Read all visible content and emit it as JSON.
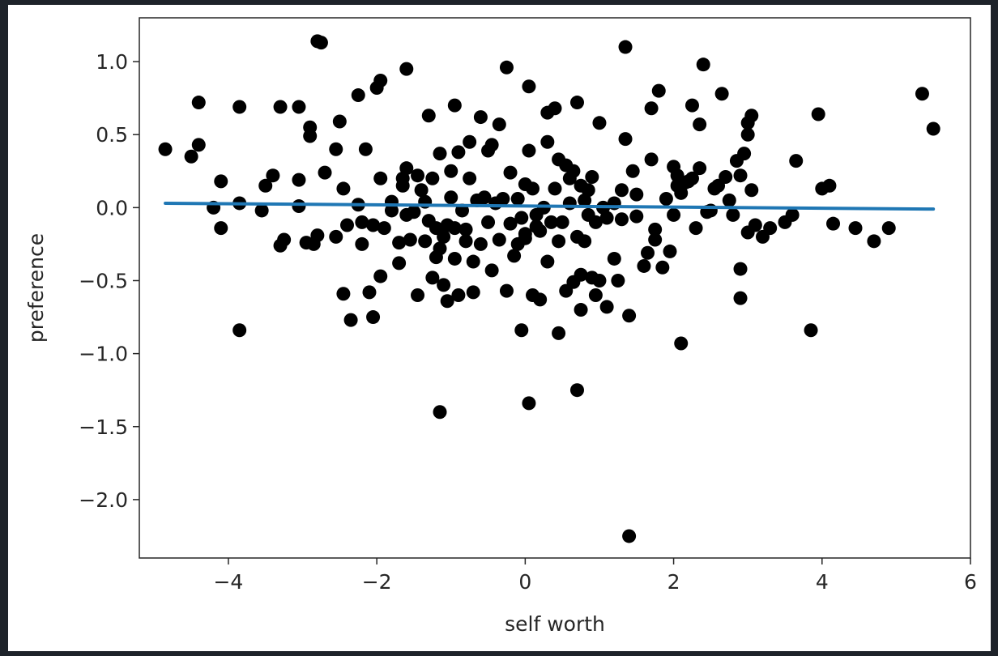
{
  "chart_data": {
    "type": "scatter",
    "xlabel": "self worth",
    "ylabel": "preference",
    "xlim": [
      -5.2,
      6.0
    ],
    "ylim": [
      -2.4,
      1.3
    ],
    "xticks": [
      -4,
      -2,
      0,
      2,
      4,
      6
    ],
    "xtick_labels": [
      "−4",
      "−2",
      "0",
      "2",
      "4",
      "6"
    ],
    "yticks": [
      1.0,
      0.5,
      0.0,
      -0.5,
      -1.0,
      -1.5,
      -2.0
    ],
    "ytick_labels": [
      "1.0",
      "0.5",
      "0.0",
      "−0.5",
      "−1.0",
      "−1.5",
      "−2.0"
    ],
    "grid": false,
    "point_color": "#000000",
    "line_color": "#1f77b4",
    "points": [
      [
        -4.85,
        0.4
      ],
      [
        -4.5,
        0.35
      ],
      [
        -4.4,
        0.72
      ],
      [
        -4.4,
        0.43
      ],
      [
        -4.2,
        0.0
      ],
      [
        -4.1,
        0.18
      ],
      [
        -4.1,
        -0.14
      ],
      [
        -3.85,
        0.69
      ],
      [
        -3.85,
        0.03
      ],
      [
        -3.85,
        -0.84
      ],
      [
        -3.55,
        -0.02
      ],
      [
        -3.5,
        0.15
      ],
      [
        -3.4,
        0.22
      ],
      [
        -3.3,
        0.69
      ],
      [
        -3.3,
        -0.26
      ],
      [
        -3.25,
        -0.22
      ],
      [
        -3.05,
        0.69
      ],
      [
        -3.05,
        0.19
      ],
      [
        -3.05,
        0.01
      ],
      [
        -2.95,
        -0.24
      ],
      [
        -2.9,
        0.55
      ],
      [
        -2.9,
        0.49
      ],
      [
        -2.85,
        -0.25
      ],
      [
        -2.8,
        -0.19
      ],
      [
        -2.8,
        1.14
      ],
      [
        -2.75,
        1.13
      ],
      [
        -2.7,
        0.24
      ],
      [
        -2.55,
        0.4
      ],
      [
        -2.55,
        -0.2
      ],
      [
        -2.5,
        0.59
      ],
      [
        -2.45,
        0.13
      ],
      [
        -2.45,
        -0.59
      ],
      [
        -2.4,
        -0.12
      ],
      [
        -2.35,
        -0.77
      ],
      [
        -2.25,
        0.77
      ],
      [
        -2.25,
        0.02
      ],
      [
        -2.2,
        -0.1
      ],
      [
        -2.2,
        -0.25
      ],
      [
        -2.15,
        0.4
      ],
      [
        -2.1,
        -0.58
      ],
      [
        -2.05,
        -0.75
      ],
      [
        -2.05,
        -0.12
      ],
      [
        -2.0,
        0.82
      ],
      [
        -1.95,
        0.87
      ],
      [
        -1.95,
        0.2
      ],
      [
        -1.95,
        -0.47
      ],
      [
        -1.9,
        -0.14
      ],
      [
        -1.8,
        0.04
      ],
      [
        -1.8,
        -0.02
      ],
      [
        -1.7,
        -0.24
      ],
      [
        -1.7,
        -0.38
      ],
      [
        -1.65,
        0.15
      ],
      [
        -1.65,
        0.2
      ],
      [
        -1.6,
        0.95
      ],
      [
        -1.6,
        0.27
      ],
      [
        -1.6,
        -0.05
      ],
      [
        -1.55,
        -0.22
      ],
      [
        -1.5,
        -0.03
      ],
      [
        -1.45,
        0.22
      ],
      [
        -1.45,
        -0.6
      ],
      [
        -1.4,
        0.12
      ],
      [
        -1.35,
        -0.23
      ],
      [
        -1.35,
        0.04
      ],
      [
        -1.3,
        0.63
      ],
      [
        -1.3,
        -0.09
      ],
      [
        -1.25,
        -0.48
      ],
      [
        -1.25,
        0.2
      ],
      [
        -1.2,
        -0.14
      ],
      [
        -1.2,
        -0.34
      ],
      [
        -1.15,
        0.37
      ],
      [
        -1.15,
        -0.28
      ],
      [
        -1.15,
        -1.4
      ],
      [
        -1.1,
        -0.2
      ],
      [
        -1.1,
        -0.53
      ],
      [
        -1.05,
        -0.64
      ],
      [
        -1.05,
        -0.12
      ],
      [
        -1.0,
        0.07
      ],
      [
        -1.0,
        0.25
      ],
      [
        -0.95,
        0.7
      ],
      [
        -0.95,
        -0.35
      ],
      [
        -0.95,
        -0.14
      ],
      [
        -0.9,
        0.38
      ],
      [
        -0.9,
        -0.6
      ],
      [
        -0.85,
        -0.02
      ],
      [
        -0.8,
        -0.15
      ],
      [
        -0.8,
        -0.23
      ],
      [
        -0.75,
        0.45
      ],
      [
        -0.75,
        0.2
      ],
      [
        -0.7,
        -0.37
      ],
      [
        -0.7,
        -0.58
      ],
      [
        -0.65,
        0.05
      ],
      [
        -0.6,
        0.62
      ],
      [
        -0.6,
        -0.25
      ],
      [
        -0.55,
        0.07
      ],
      [
        -0.5,
        -0.1
      ],
      [
        -0.5,
        0.39
      ],
      [
        -0.45,
        0.43
      ],
      [
        -0.45,
        -0.43
      ],
      [
        -0.4,
        0.03
      ],
      [
        -0.35,
        0.57
      ],
      [
        -0.35,
        -0.22
      ],
      [
        -0.3,
        0.06
      ],
      [
        -0.25,
        0.96
      ],
      [
        -0.25,
        -0.57
      ],
      [
        -0.2,
        -0.11
      ],
      [
        -0.2,
        0.24
      ],
      [
        -0.15,
        -0.33
      ],
      [
        -0.1,
        0.06
      ],
      [
        -0.1,
        -0.25
      ],
      [
        -0.05,
        -0.07
      ],
      [
        -0.05,
        -0.84
      ],
      [
        0.0,
        0.16
      ],
      [
        0.0,
        -0.18
      ],
      [
        0.0,
        -0.21
      ],
      [
        0.05,
        0.83
      ],
      [
        0.05,
        0.39
      ],
      [
        0.05,
        -1.34
      ],
      [
        0.1,
        -0.6
      ],
      [
        0.1,
        0.13
      ],
      [
        0.15,
        -0.05
      ],
      [
        0.15,
        -0.13
      ],
      [
        0.2,
        -0.63
      ],
      [
        0.2,
        -0.16
      ],
      [
        0.25,
        0.0
      ],
      [
        0.3,
        0.65
      ],
      [
        0.3,
        0.45
      ],
      [
        0.3,
        -0.37
      ],
      [
        0.35,
        -0.1
      ],
      [
        0.4,
        0.68
      ],
      [
        0.4,
        0.13
      ],
      [
        0.45,
        -0.23
      ],
      [
        0.45,
        0.33
      ],
      [
        0.45,
        -0.86
      ],
      [
        0.5,
        -0.1
      ],
      [
        0.55,
        0.29
      ],
      [
        0.55,
        -0.57
      ],
      [
        0.6,
        0.2
      ],
      [
        0.6,
        0.03
      ],
      [
        0.65,
        0.25
      ],
      [
        0.65,
        -0.51
      ],
      [
        0.7,
        0.72
      ],
      [
        0.7,
        -0.2
      ],
      [
        0.7,
        -1.25
      ],
      [
        0.75,
        0.15
      ],
      [
        0.75,
        -0.7
      ],
      [
        0.75,
        -0.46
      ],
      [
        0.8,
        0.05
      ],
      [
        0.8,
        -0.23
      ],
      [
        0.85,
        0.12
      ],
      [
        0.85,
        -0.05
      ],
      [
        0.9,
        0.21
      ],
      [
        0.9,
        -0.48
      ],
      [
        0.95,
        -0.6
      ],
      [
        0.95,
        -0.1
      ],
      [
        1.0,
        0.58
      ],
      [
        1.0,
        -0.5
      ],
      [
        1.05,
        0.0
      ],
      [
        1.1,
        -0.07
      ],
      [
        1.1,
        -0.68
      ],
      [
        1.2,
        -0.35
      ],
      [
        1.2,
        0.03
      ],
      [
        1.25,
        -0.5
      ],
      [
        1.3,
        0.12
      ],
      [
        1.3,
        -0.08
      ],
      [
        1.35,
        1.1
      ],
      [
        1.35,
        0.47
      ],
      [
        1.4,
        -0.74
      ],
      [
        1.4,
        -2.25
      ],
      [
        1.45,
        0.25
      ],
      [
        1.5,
        -0.06
      ],
      [
        1.5,
        0.09
      ],
      [
        1.6,
        -0.4
      ],
      [
        1.65,
        -0.31
      ],
      [
        1.7,
        0.33
      ],
      [
        1.7,
        0.68
      ],
      [
        1.75,
        -0.15
      ],
      [
        1.75,
        -0.22
      ],
      [
        1.8,
        0.8
      ],
      [
        1.85,
        -0.41
      ],
      [
        1.9,
        0.06
      ],
      [
        1.95,
        -0.3
      ],
      [
        2.0,
        -0.05
      ],
      [
        2.0,
        0.28
      ],
      [
        2.05,
        0.15
      ],
      [
        2.05,
        0.22
      ],
      [
        2.1,
        0.1
      ],
      [
        2.1,
        -0.93
      ],
      [
        2.15,
        0.17
      ],
      [
        2.2,
        0.18
      ],
      [
        2.25,
        0.2
      ],
      [
        2.25,
        0.7
      ],
      [
        2.3,
        -0.14
      ],
      [
        2.35,
        0.57
      ],
      [
        2.35,
        0.27
      ],
      [
        2.4,
        0.98
      ],
      [
        2.45,
        -0.03
      ],
      [
        2.5,
        -0.02
      ],
      [
        2.55,
        0.13
      ],
      [
        2.6,
        0.15
      ],
      [
        2.65,
        0.78
      ],
      [
        2.7,
        0.21
      ],
      [
        2.75,
        0.05
      ],
      [
        2.8,
        -0.05
      ],
      [
        2.85,
        0.32
      ],
      [
        2.9,
        0.22
      ],
      [
        2.9,
        -0.42
      ],
      [
        2.9,
        -0.62
      ],
      [
        2.95,
        0.37
      ],
      [
        3.0,
        0.5
      ],
      [
        3.0,
        0.58
      ],
      [
        3.0,
        -0.17
      ],
      [
        3.05,
        0.63
      ],
      [
        3.05,
        0.12
      ],
      [
        3.1,
        -0.12
      ],
      [
        3.2,
        -0.2
      ],
      [
        3.3,
        -0.14
      ],
      [
        3.5,
        -0.1
      ],
      [
        3.6,
        -0.05
      ],
      [
        3.65,
        0.32
      ],
      [
        3.85,
        -0.84
      ],
      [
        3.95,
        0.64
      ],
      [
        4.0,
        0.13
      ],
      [
        4.1,
        0.15
      ],
      [
        4.15,
        -0.11
      ],
      [
        4.45,
        -0.14
      ],
      [
        4.7,
        -0.23
      ],
      [
        4.9,
        -0.14
      ],
      [
        5.35,
        0.78
      ],
      [
        5.5,
        0.54
      ]
    ],
    "fit_line": {
      "x": [
        -4.85,
        5.5
      ],
      "y": [
        0.03,
        -0.01
      ]
    }
  }
}
